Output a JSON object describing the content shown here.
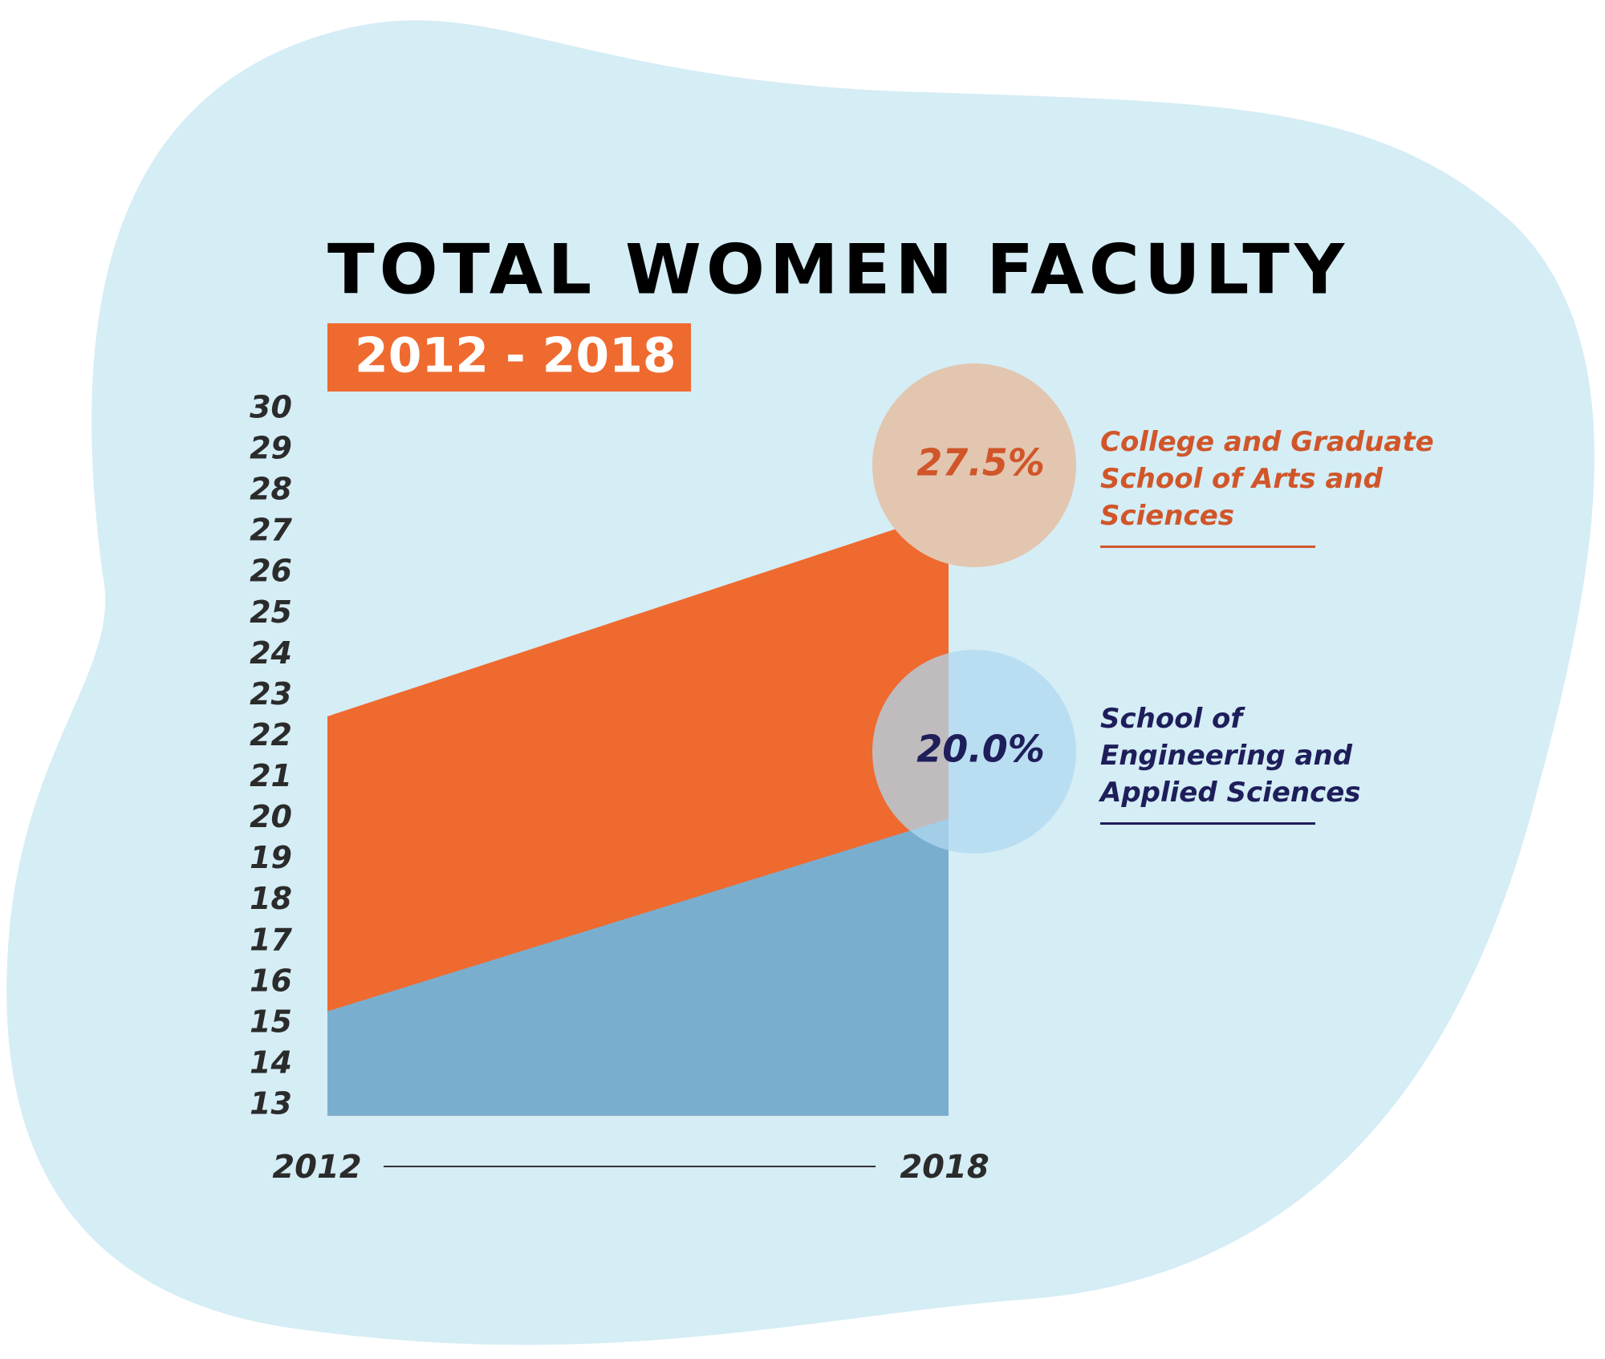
{
  "chart_data": {
    "type": "area",
    "title": "TOTAL WOMEN FACULTY",
    "subtitle": "2012 - 2018",
    "x": [
      2012,
      2018
    ],
    "xlim": [
      2012,
      2018
    ],
    "ylim": [
      12.75,
      30
    ],
    "yticks": [
      13,
      14,
      15,
      16,
      17,
      18,
      19,
      20,
      21,
      22,
      23,
      24,
      25,
      26,
      27,
      28,
      29,
      30
    ],
    "series": [
      {
        "name": "College and Graduate School of Arts and Sciences",
        "color": "#ef6a2f",
        "values": [
          22.5,
          27.5
        ],
        "value_labels": [
          null,
          "27.5%"
        ]
      },
      {
        "name": "School of Engineering and Applied Sciences",
        "color": "#7aaecf",
        "values": [
          15.3,
          20.0
        ],
        "value_labels": [
          null,
          "20.0%"
        ]
      }
    ]
  }
}
